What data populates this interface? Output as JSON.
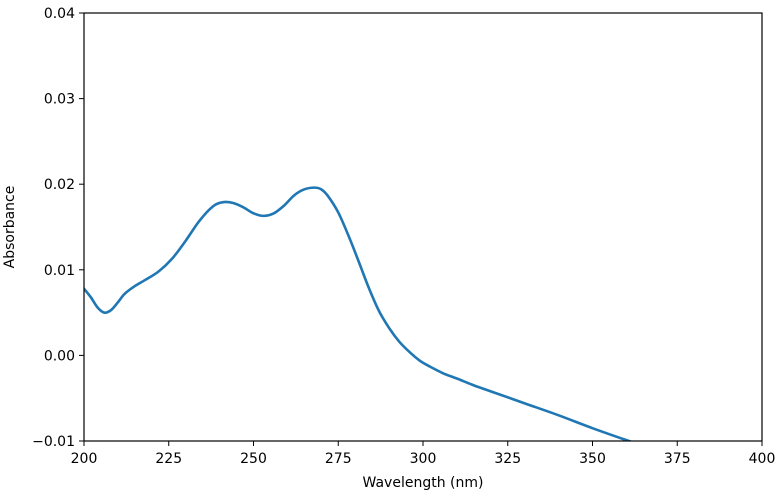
{
  "chart_data": {
    "type": "line",
    "title": "",
    "xlabel": "Wavelength (nm)",
    "ylabel": "Absorbance",
    "xlim": [
      200,
      400
    ],
    "ylim": [
      -0.01,
      0.04
    ],
    "x_ticks": [
      200,
      225,
      250,
      275,
      300,
      325,
      350,
      375,
      400
    ],
    "x_tick_labels": [
      "200",
      "225",
      "250",
      "275",
      "300",
      "325",
      "350",
      "375",
      "400"
    ],
    "y_ticks": [
      -0.01,
      0.0,
      0.01,
      0.02,
      0.03,
      0.04
    ],
    "y_tick_labels": [
      "−0.01",
      "0.00",
      "0.01",
      "0.02",
      "0.03",
      "0.04"
    ],
    "grid": false,
    "legend": "none",
    "series": [
      {
        "color": "#1f77b4",
        "x": [
          200,
          202,
          204,
          206,
          208,
          210,
          212,
          215,
          218,
          222,
          226,
          230,
          234,
          238,
          241,
          244,
          247,
          250,
          253,
          256,
          259,
          262,
          265,
          268,
          270,
          272,
          275,
          278,
          281,
          284,
          287,
          290,
          293,
          296,
          299,
          302,
          306,
          310,
          315,
          320,
          330,
          340,
          350,
          360,
          363
        ],
        "y": [
          0.0078,
          0.0068,
          0.0056,
          0.005,
          0.0053,
          0.0062,
          0.0072,
          0.0081,
          0.0088,
          0.0098,
          0.0113,
          0.0134,
          0.0157,
          0.0174,
          0.0179,
          0.0178,
          0.0173,
          0.0166,
          0.0163,
          0.0166,
          0.0175,
          0.0187,
          0.0194,
          0.0196,
          0.0194,
          0.0186,
          0.0167,
          0.014,
          0.011,
          0.0079,
          0.0052,
          0.0032,
          0.0016,
          0.0004,
          -0.0006,
          -0.0013,
          -0.0021,
          -0.0027,
          -0.0035,
          -0.0042,
          -0.0056,
          -0.007,
          -0.0085,
          -0.0099,
          -0.0103
        ]
      }
    ]
  }
}
